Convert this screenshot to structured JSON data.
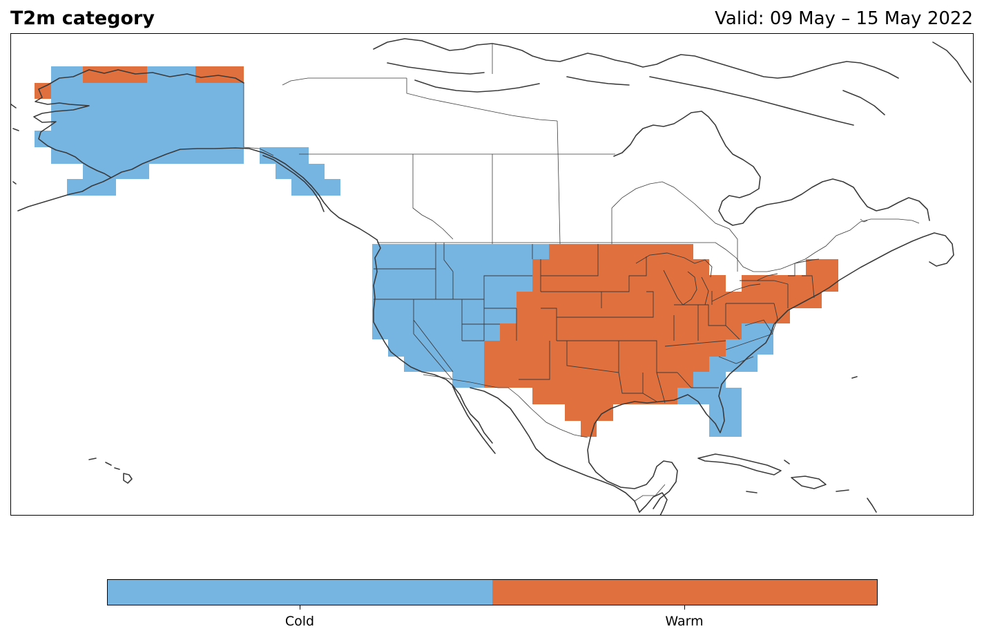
{
  "header": {
    "title": "T2m category",
    "valid": "Valid: 09 May – 15 May 2022"
  },
  "colors": {
    "cold": "#76b4e2",
    "warm": "#e0703d"
  },
  "legend": {
    "items": [
      {
        "label": "Cold",
        "color": "#76b4e2"
      },
      {
        "label": "Warm",
        "color": "#e0703d"
      }
    ]
  }
}
